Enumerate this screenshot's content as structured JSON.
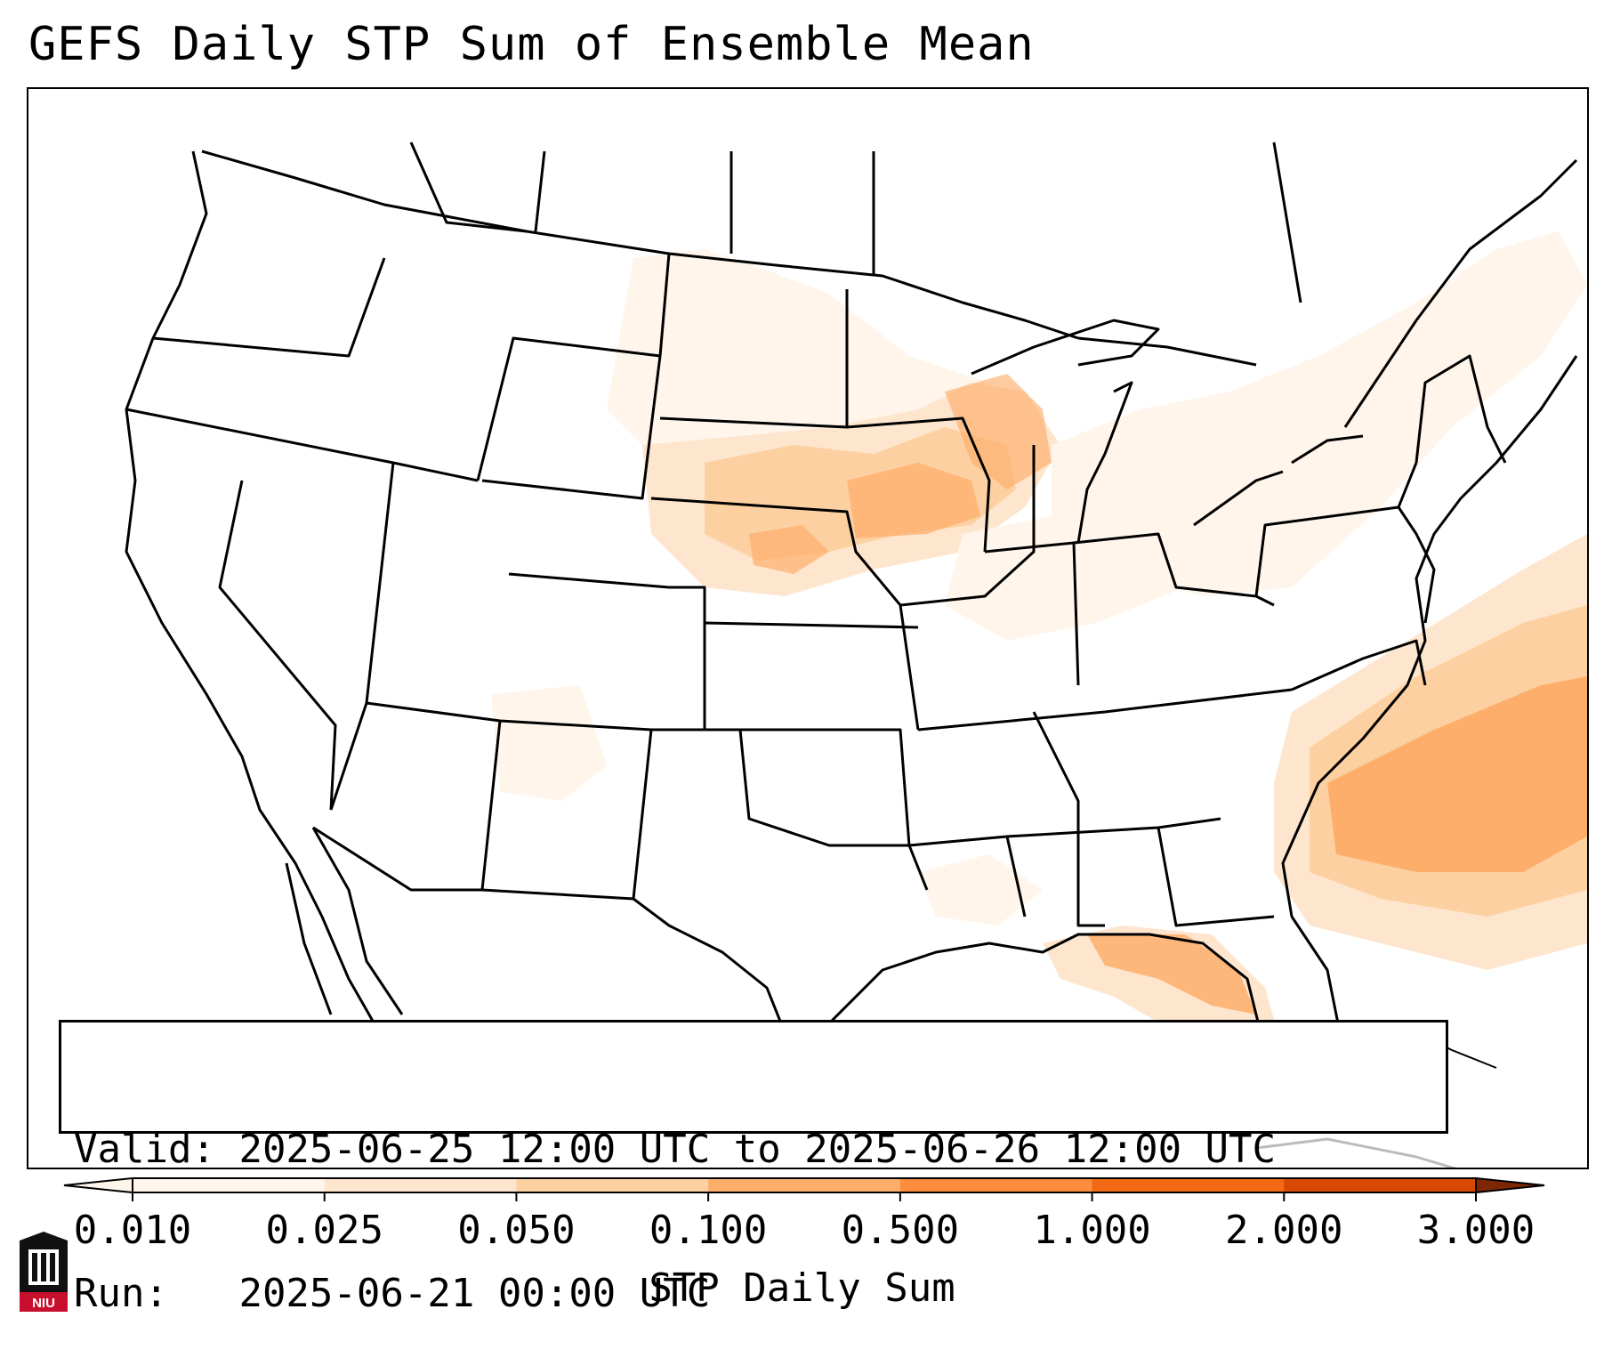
{
  "title": "GEFS Daily STP Sum of Ensemble Mean",
  "info": {
    "valid_label": "Valid:",
    "valid_value": "2025-06-25 12:00 UTC to 2025-06-26 12:00 UTC",
    "run_label": "Run:",
    "run_value": "2025-06-21 00:00 UTC"
  },
  "colorbar": {
    "label": "STP Daily Sum",
    "ticks": [
      "0.010",
      "0.025",
      "0.050",
      "0.100",
      "0.500",
      "1.000",
      "2.000",
      "3.000"
    ],
    "colors": [
      "#fff5eb",
      "#fee6ce",
      "#fdd0a2",
      "#fdae6b",
      "#fd8d3c",
      "#f16913",
      "#d94801",
      "#a63603"
    ]
  },
  "logo": {
    "text": "NIU",
    "icon": "university-tower-icon"
  }
}
